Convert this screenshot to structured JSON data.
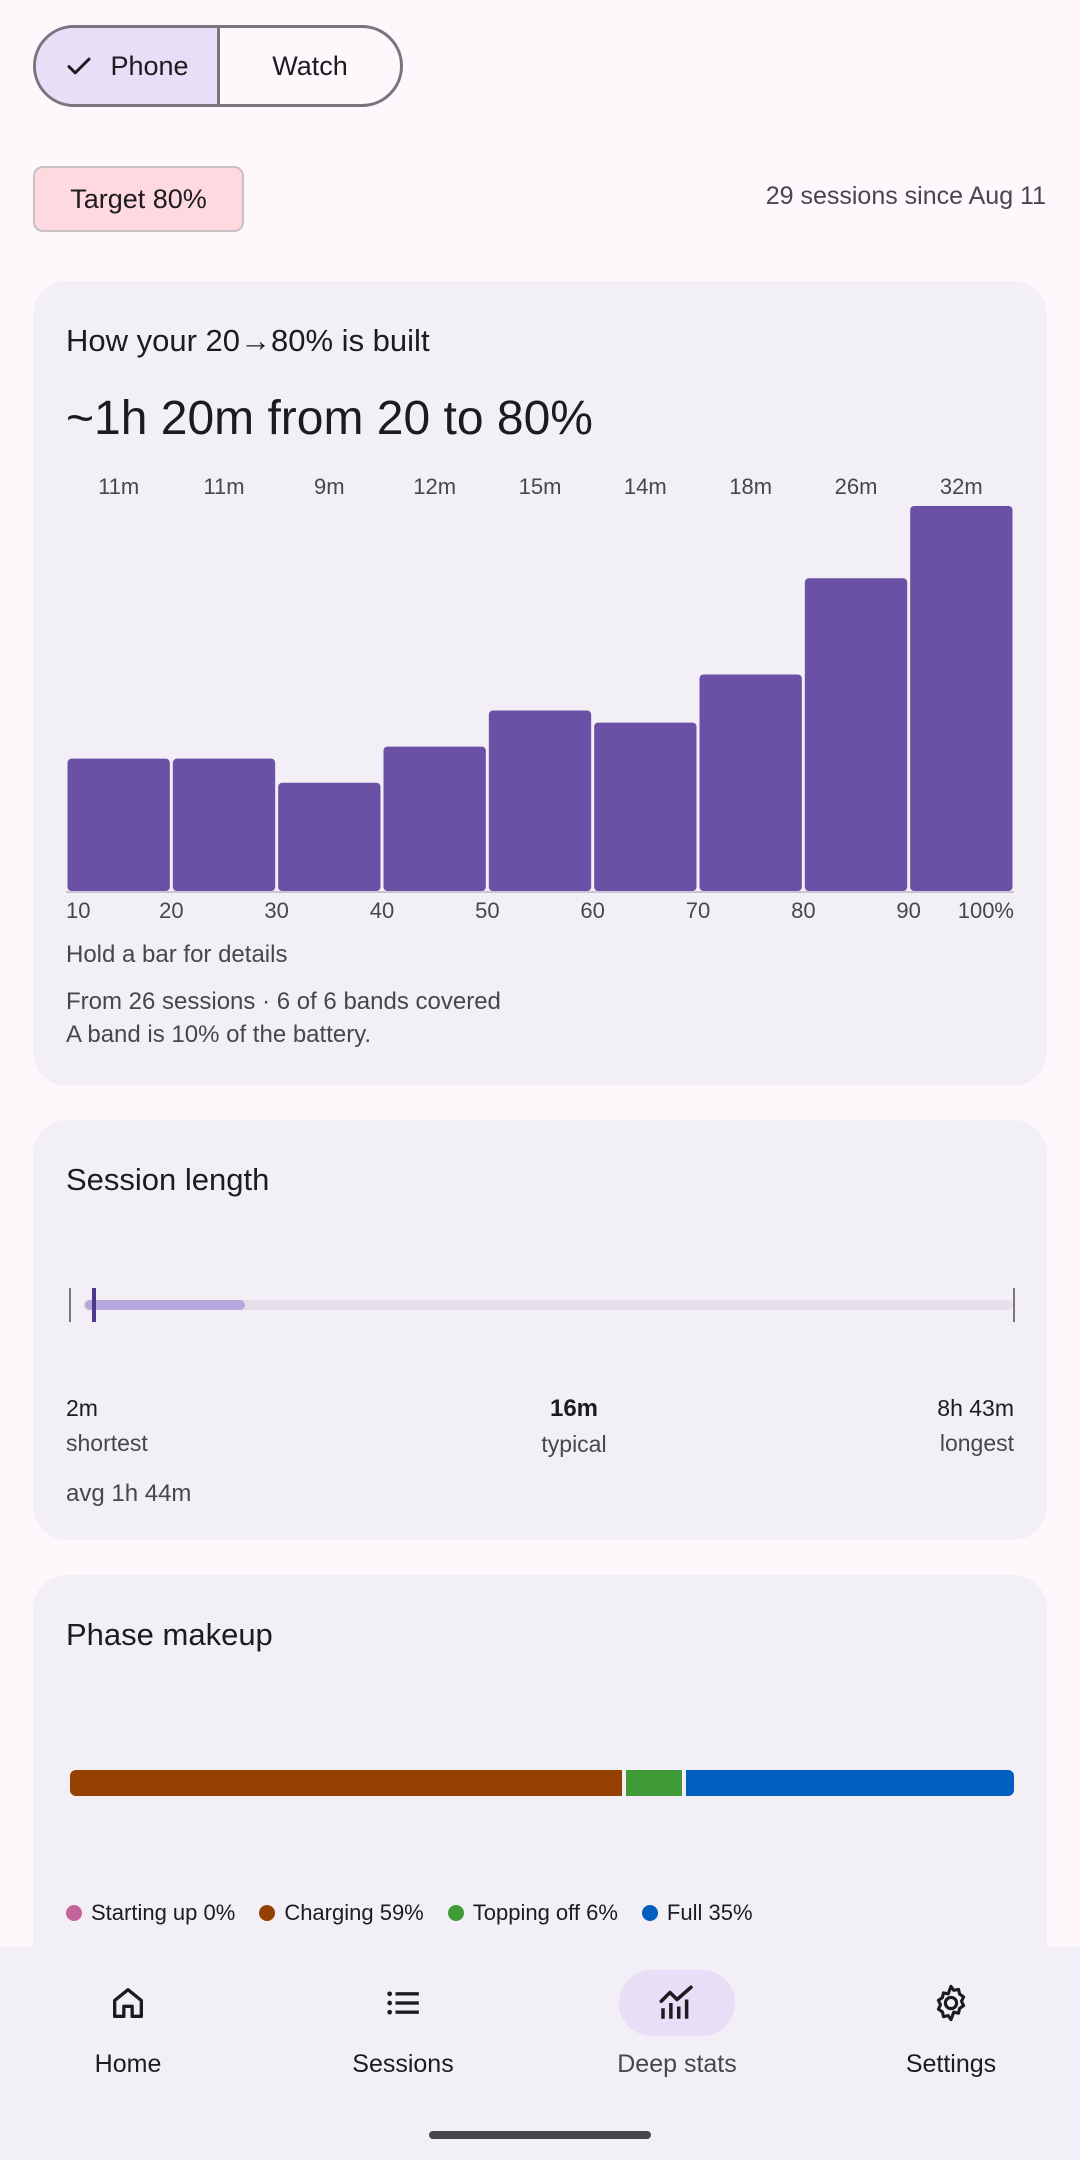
{
  "device_toggle": {
    "options": [
      {
        "label": "Phone",
        "selected": true,
        "icon": "check-icon"
      },
      {
        "label": "Watch",
        "selected": false
      }
    ]
  },
  "target_chip": {
    "label": "Target 80%"
  },
  "sessions_since": "29 sessions since Aug 11",
  "built_card": {
    "title": "How your 20→80% is built",
    "summary": "~1h 20m from 20 to 80%",
    "hint": "Hold a bar for details",
    "footnote_line1": "From 26 sessions · 6 of 6 bands covered",
    "footnote_line2": "A band is 10% of the battery."
  },
  "chart_data": {
    "type": "bar",
    "categories": [
      "10–20",
      "20–30",
      "30–40",
      "40–50",
      "50–60",
      "60–70",
      "70–80",
      "80–90",
      "90–100"
    ],
    "x_tick_labels": [
      "10",
      "20",
      "30",
      "40",
      "50",
      "60",
      "70",
      "80",
      "90",
      "100%"
    ],
    "values": [
      11,
      11,
      9,
      12,
      15,
      14,
      18,
      26,
      32
    ],
    "data_labels": [
      "11m",
      "11m",
      "9m",
      "12m",
      "15m",
      "14m",
      "18m",
      "26m",
      "32m"
    ],
    "ylim": [
      0,
      32
    ],
    "color": "#6a51a6",
    "title": "How your 20→80% is built"
  },
  "session_card": {
    "title": "Session length",
    "shortest": {
      "value": "2m",
      "label": "shortest"
    },
    "typical": {
      "value": "16m",
      "label": "typical"
    },
    "longest": {
      "value": "8h 43m",
      "label": "longest"
    },
    "average": "avg 1h 44m"
  },
  "phase_card": {
    "title": "Phase makeup",
    "phases": [
      {
        "label": "Starting up 0%",
        "percent": 0,
        "color": "#c3649b"
      },
      {
        "label": "Charging 59%",
        "percent": 59,
        "color": "#944000"
      },
      {
        "label": "Topping off 6%",
        "percent": 6,
        "color": "#3e9b37"
      },
      {
        "label": "Full 35%",
        "percent": 35,
        "color": "#005fbf"
      }
    ]
  },
  "bottom_nav": {
    "items": [
      {
        "label": "Home",
        "icon": "home-icon",
        "active": false
      },
      {
        "label": "Sessions",
        "icon": "list-icon",
        "active": false
      },
      {
        "label": "Deep stats",
        "icon": "chart-icon",
        "active": true
      },
      {
        "label": "Settings",
        "icon": "gear-icon",
        "active": false
      }
    ]
  },
  "colors": {
    "background": "#fef7fc",
    "card": "#f3eff6",
    "accent": "#6a51a6",
    "selected_container": "#e8def8",
    "target_chip": "#ffd9e0"
  }
}
